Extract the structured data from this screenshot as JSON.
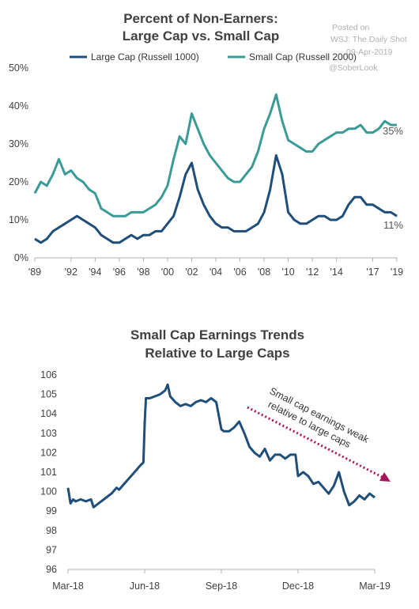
{
  "watermark": {
    "line1": "Posted on",
    "line2": "WSJ: The Daily Shot",
    "line3": "09-Apr-2019",
    "line4": "@SoberLook"
  },
  "colors": {
    "large_cap": "#1f4e79",
    "small_cap": "#3a9a96",
    "chart2_line": "#1f4e79",
    "arrow": "#a8145a",
    "axis": "#b0b0b0"
  },
  "chart_data": [
    {
      "type": "line",
      "title": "Percent of Non-Earners:\nLarge Cap vs. Small Cap",
      "xlabel": "",
      "ylabel": "",
      "x_ticks": [
        "'89",
        "'92",
        "'94",
        "'96",
        "'98",
        "'00",
        "'02",
        "'04",
        "'06",
        "'08",
        "'10",
        "'12",
        "'14",
        "'17",
        "'19"
      ],
      "x_tick_years": [
        1989,
        1992,
        1994,
        1996,
        1998,
        2000,
        2002,
        2004,
        2006,
        2008,
        2010,
        2012,
        2014,
        2017,
        2019
      ],
      "xlim": [
        1989,
        2019
      ],
      "ylim": [
        0,
        50
      ],
      "y_ticks": [
        "0%",
        "10%",
        "20%",
        "30%",
        "40%",
        "50%"
      ],
      "legend_position": "top",
      "series": [
        {
          "name": "Large Cap (Russell 1000)",
          "end_label": "11%",
          "x": [
            1989,
            1989.5,
            1990,
            1990.5,
            1991,
            1991.5,
            1992,
            1992.5,
            1993,
            1993.5,
            1994,
            1994.5,
            1995,
            1995.5,
            1996,
            1996.5,
            1997,
            1997.5,
            1998,
            1998.5,
            1999,
            1999.5,
            2000,
            2000.5,
            2001,
            2001.5,
            2002,
            2002.5,
            2003,
            2003.5,
            2004,
            2004.5,
            2005,
            2005.5,
            2006,
            2006.5,
            2007,
            2007.5,
            2008,
            2008.5,
            2009,
            2009.5,
            2010,
            2010.5,
            2011,
            2011.5,
            2012,
            2012.5,
            2013,
            2013.5,
            2014,
            2014.5,
            2015,
            2015.5,
            2016,
            2016.5,
            2017,
            2017.5,
            2018,
            2018.5,
            2019
          ],
          "values": [
            5,
            4,
            5,
            7,
            8,
            9,
            10,
            11,
            10,
            9,
            8,
            6,
            5,
            4,
            4,
            5,
            6,
            5,
            6,
            6,
            7,
            7,
            9,
            11,
            16,
            22,
            25,
            18,
            14,
            11,
            9,
            8,
            8,
            7,
            7,
            7,
            8,
            9,
            12,
            18,
            27,
            22,
            12,
            10,
            9,
            9,
            10,
            11,
            11,
            10,
            10,
            11,
            14,
            16,
            16,
            14,
            14,
            13,
            12,
            12,
            11
          ]
        },
        {
          "name": "Small Cap (Russell 2000)",
          "end_label": "35%",
          "x": [
            1989,
            1989.5,
            1990,
            1990.5,
            1991,
            1991.5,
            1992,
            1992.5,
            1993,
            1993.5,
            1994,
            1994.5,
            1995,
            1995.5,
            1996,
            1996.5,
            1997,
            1997.5,
            1998,
            1998.5,
            1999,
            1999.5,
            2000,
            2000.5,
            2001,
            2001.5,
            2002,
            2002.5,
            2003,
            2003.5,
            2004,
            2004.5,
            2005,
            2005.5,
            2006,
            2006.5,
            2007,
            2007.5,
            2008,
            2008.5,
            2009,
            2009.5,
            2010,
            2010.5,
            2011,
            2011.5,
            2012,
            2012.5,
            2013,
            2013.5,
            2014,
            2014.5,
            2015,
            2015.5,
            2016,
            2016.5,
            2017,
            2017.5,
            2018,
            2018.5,
            2019
          ],
          "values": [
            17,
            20,
            19,
            22,
            26,
            22,
            23,
            21,
            20,
            18,
            17,
            13,
            12,
            11,
            11,
            11,
            12,
            12,
            12,
            13,
            14,
            16,
            19,
            26,
            32,
            30,
            38,
            34,
            30,
            27,
            25,
            23,
            21,
            20,
            20,
            22,
            24,
            28,
            34,
            38,
            43,
            36,
            31,
            30,
            29,
            28,
            28,
            30,
            31,
            32,
            33,
            33,
            34,
            34,
            35,
            33,
            33,
            34,
            36,
            35,
            35
          ]
        }
      ]
    },
    {
      "type": "line",
      "title": "Small Cap Earnings Trends\nRelative to Large Caps",
      "xlabel": "",
      "ylabel": "",
      "x_ticks": [
        "Mar-18",
        "Jun-18",
        "Sep-18",
        "Dec-18",
        "Mar-19"
      ],
      "x_tick_pos": [
        0,
        3,
        6,
        9,
        12
      ],
      "xlim": [
        0,
        12
      ],
      "ylim": [
        96,
        106
      ],
      "y_ticks": [
        "96",
        "97",
        "98",
        "99",
        "100",
        "101",
        "102",
        "103",
        "104",
        "105",
        "106"
      ],
      "annotation": "Small cap earnings weak\nrelative to large caps",
      "series": [
        {
          "name": "",
          "x": [
            0,
            0.1,
            0.2,
            0.3,
            0.5,
            0.7,
            0.9,
            1.0,
            1.1,
            1.3,
            1.5,
            1.7,
            1.9,
            2.0,
            2.2,
            2.4,
            2.6,
            2.8,
            2.95,
            3.0,
            3.05,
            3.2,
            3.4,
            3.6,
            3.8,
            3.9,
            4.0,
            4.2,
            4.4,
            4.6,
            4.8,
            5.0,
            5.2,
            5.4,
            5.6,
            5.8,
            6.0,
            6.1,
            6.3,
            6.5,
            6.7,
            6.9,
            7.1,
            7.3,
            7.5,
            7.7,
            7.9,
            8.1,
            8.3,
            8.5,
            8.7,
            8.9,
            9.0,
            9.2,
            9.4,
            9.6,
            9.8,
            10.0,
            10.2,
            10.4,
            10.6,
            10.8,
            11.0,
            11.2,
            11.4,
            11.6,
            11.8,
            12.0
          ],
          "values": [
            100.2,
            99.4,
            99.6,
            99.5,
            99.6,
            99.5,
            99.6,
            99.2,
            99.3,
            99.5,
            99.7,
            99.9,
            100.2,
            100.1,
            100.4,
            100.7,
            101.0,
            101.3,
            101.5,
            103.5,
            104.8,
            104.8,
            104.9,
            105.0,
            105.2,
            105.5,
            104.9,
            104.6,
            104.4,
            104.5,
            104.4,
            104.6,
            104.7,
            104.6,
            104.8,
            104.6,
            103.2,
            103.1,
            103.1,
            103.3,
            103.6,
            103.0,
            102.3,
            102.0,
            101.8,
            102.2,
            101.6,
            101.9,
            101.9,
            101.7,
            101.9,
            101.9,
            100.8,
            101.0,
            100.8,
            100.4,
            100.5,
            100.2,
            99.9,
            100.3,
            101.0,
            100.0,
            99.3,
            99.5,
            99.8,
            99.6,
            99.9,
            99.7
          ]
        }
      ]
    }
  ]
}
